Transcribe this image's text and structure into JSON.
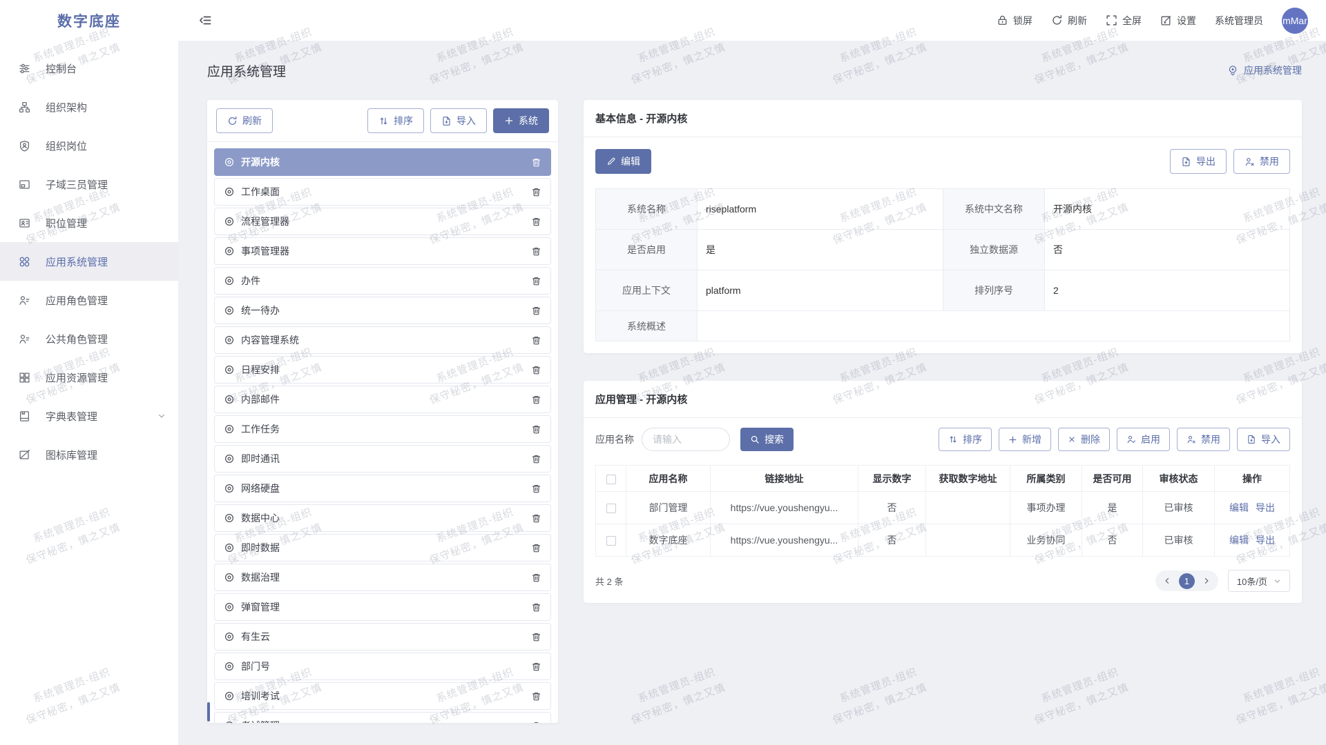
{
  "app": {
    "logo": "数字底座"
  },
  "watermark": {
    "line1": "系统管理员-组织",
    "line2": "保守秘密，慎之又慎"
  },
  "topbar": {
    "actions": [
      {
        "icon": "lock-icon",
        "label": "锁屏"
      },
      {
        "icon": "refresh-icon",
        "label": "刷新"
      },
      {
        "icon": "fullscreen-icon",
        "label": "全屏"
      },
      {
        "icon": "settings-icon",
        "label": "设置"
      }
    ],
    "username": "系统管理员",
    "avatar_text": "mMar"
  },
  "sidebar": {
    "items": [
      {
        "label": "控制台"
      },
      {
        "label": "组织架构"
      },
      {
        "label": "组织岗位"
      },
      {
        "label": "子域三员管理"
      },
      {
        "label": "职位管理"
      },
      {
        "label": "应用系统管理",
        "active": true
      },
      {
        "label": "应用角色管理"
      },
      {
        "label": "公共角色管理"
      },
      {
        "label": "应用资源管理"
      },
      {
        "label": "字典表管理",
        "expandable": true
      },
      {
        "label": "图标库管理"
      }
    ]
  },
  "page": {
    "title": "应用系统管理",
    "breadcrumb": "应用系统管理"
  },
  "left_panel": {
    "refresh_label": "刷新",
    "sort_label": "排序",
    "import_label": "导入",
    "add_system_label": "系统",
    "selected_index": 0,
    "systems": [
      "开源内核",
      "工作桌面",
      "流程管理器",
      "事项管理器",
      "办件",
      "统一待办",
      "内容管理系统",
      "日程安排",
      "内部邮件",
      "工作任务",
      "即时通讯",
      "网络硬盘",
      "数据中心",
      "即时数据",
      "数据治理",
      "弹窗管理",
      "有生云",
      "部门号",
      "培训考试",
      "考试管理"
    ]
  },
  "basic_info": {
    "title": "基本信息 - 开源内核",
    "edit_label": "编辑",
    "export_label": "导出",
    "disable_label": "禁用",
    "fields": [
      {
        "label": "系统名称",
        "value": "riseplatform"
      },
      {
        "label": "系统中文名称",
        "value": "开源内核"
      },
      {
        "label": "是否启用",
        "value": "是"
      },
      {
        "label": "独立数据源",
        "value": "否"
      },
      {
        "label": "应用上下文",
        "value": "platform"
      },
      {
        "label": "排列序号",
        "value": "2"
      },
      {
        "label": "系统概述",
        "value": ""
      }
    ]
  },
  "app_mgmt": {
    "title": "应用管理 - 开源内核",
    "search_label": "应用名称",
    "search_placeholder": "请输入",
    "search_button": "搜索",
    "buttons": [
      "排序",
      "新增",
      "删除",
      "启用",
      "禁用",
      "导入"
    ],
    "table": {
      "headers": [
        "应用名称",
        "链接地址",
        "显示数字",
        "获取数字地址",
        "所属类别",
        "是否可用",
        "审核状态",
        "操作"
      ],
      "rows": [
        {
          "name": "部门管理",
          "url": "https://vue.youshengyu...",
          "show_number": "否",
          "number_url": "",
          "category": "事项办理",
          "available": "是",
          "audit": "已审核"
        },
        {
          "name": "数字底座",
          "url": "https://vue.youshengyu...",
          "show_number": "否",
          "number_url": "",
          "category": "业务协同",
          "available": "否",
          "audit": "已审核"
        }
      ],
      "edit_action": "编辑",
      "export_action": "导出"
    },
    "footer": {
      "total": "共 2 条",
      "page": "1",
      "page_size": "10条/页"
    }
  }
}
